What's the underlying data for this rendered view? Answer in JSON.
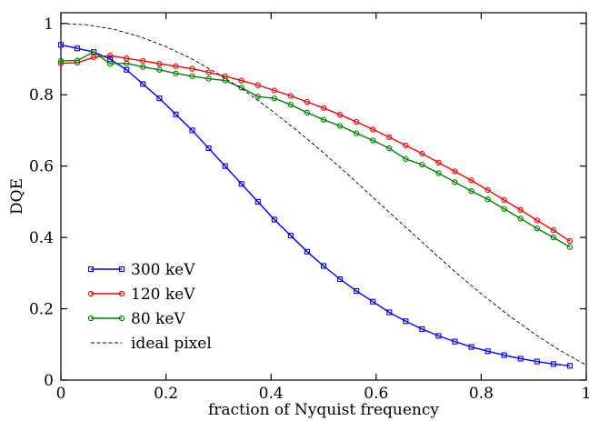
{
  "chart_data": {
    "type": "line",
    "xlabel": "fraction of Nyquist frequency",
    "ylabel": "DQE",
    "xlim": [
      0,
      1
    ],
    "ylim": [
      0,
      1.03
    ],
    "x_ticks": [
      0,
      0.2,
      0.4,
      0.6,
      0.8,
      1
    ],
    "x_tick_labels": [
      "0",
      "0.2",
      "0.4",
      "0.6",
      "0.8",
      "1"
    ],
    "y_ticks": [
      0,
      0.2,
      0.4,
      0.6,
      0.8,
      1
    ],
    "y_tick_labels": [
      "0",
      "0.2",
      "0.4",
      "0.6",
      "0.8",
      "1"
    ],
    "grid": false,
    "legend_position": "bottom-left",
    "series": [
      {
        "name": "300 keV",
        "color": "#0000ff",
        "marker": "square",
        "x": [
          0,
          0.03125,
          0.0625,
          0.09375,
          0.125,
          0.15625,
          0.1875,
          0.21875,
          0.25,
          0.28125,
          0.3125,
          0.34375,
          0.375,
          0.40625,
          0.4375,
          0.46875,
          0.5,
          0.53125,
          0.5625,
          0.59375,
          0.625,
          0.65625,
          0.6875,
          0.71875,
          0.75,
          0.78125,
          0.8125,
          0.84375,
          0.875,
          0.90625,
          0.9375,
          0.96875
        ],
        "y": [
          0.94,
          0.93,
          0.92,
          0.9,
          0.87,
          0.83,
          0.79,
          0.745,
          0.7,
          0.65,
          0.6,
          0.55,
          0.5,
          0.45,
          0.405,
          0.36,
          0.32,
          0.283,
          0.25,
          0.22,
          0.19,
          0.165,
          0.143,
          0.124,
          0.108,
          0.093,
          0.081,
          0.07,
          0.06,
          0.052,
          0.045,
          0.04
        ]
      },
      {
        "name": "120 keV",
        "color": "#ff0000",
        "marker": "circle",
        "x": [
          0,
          0.03125,
          0.0625,
          0.09375,
          0.125,
          0.15625,
          0.1875,
          0.21875,
          0.25,
          0.28125,
          0.3125,
          0.34375,
          0.375,
          0.40625,
          0.4375,
          0.46875,
          0.5,
          0.53125,
          0.5625,
          0.59375,
          0.625,
          0.65625,
          0.6875,
          0.71875,
          0.75,
          0.78125,
          0.8125,
          0.84375,
          0.875,
          0.90625,
          0.9375,
          0.96875
        ],
        "y": [
          0.888,
          0.89,
          0.905,
          0.91,
          0.902,
          0.895,
          0.887,
          0.88,
          0.873,
          0.863,
          0.852,
          0.84,
          0.827,
          0.812,
          0.797,
          0.78,
          0.763,
          0.744,
          0.724,
          0.703,
          0.681,
          0.658,
          0.635,
          0.61,
          0.585,
          0.56,
          0.533,
          0.505,
          0.477,
          0.448,
          0.42,
          0.39
        ]
      },
      {
        "name": "80 keV",
        "color": "#008000",
        "marker": "circle",
        "x": [
          0,
          0.03125,
          0.0625,
          0.09375,
          0.125,
          0.15625,
          0.1875,
          0.21875,
          0.25,
          0.28125,
          0.3125,
          0.34375,
          0.375,
          0.40625,
          0.4375,
          0.46875,
          0.5,
          0.53125,
          0.5625,
          0.59375,
          0.625,
          0.65625,
          0.6875,
          0.71875,
          0.75,
          0.78125,
          0.8125,
          0.84375,
          0.875,
          0.90625,
          0.9375,
          0.96875
        ],
        "y": [
          0.895,
          0.896,
          0.92,
          0.887,
          0.888,
          0.878,
          0.87,
          0.86,
          0.852,
          0.845,
          0.84,
          0.82,
          0.795,
          0.79,
          0.772,
          0.75,
          0.73,
          0.713,
          0.692,
          0.672,
          0.65,
          0.62,
          0.604,
          0.58,
          0.555,
          0.53,
          0.507,
          0.48,
          0.453,
          0.425,
          0.4,
          0.373
        ]
      },
      {
        "name": "ideal pixel",
        "color": "#000000",
        "marker": "none",
        "dash": "dashed",
        "x": [
          0,
          0.05,
          0.1,
          0.15,
          0.2,
          0.25,
          0.3,
          0.35,
          0.4,
          0.45,
          0.5,
          0.55,
          0.6,
          0.65,
          0.7,
          0.75,
          0.8,
          0.85,
          0.9,
          0.95,
          1.0
        ],
        "y": [
          1.0,
          0.996,
          0.984,
          0.963,
          0.935,
          0.9,
          0.858,
          0.811,
          0.757,
          0.699,
          0.637,
          0.572,
          0.504,
          0.437,
          0.37,
          0.304,
          0.242,
          0.184,
          0.131,
          0.083,
          0.042
        ]
      }
    ]
  }
}
